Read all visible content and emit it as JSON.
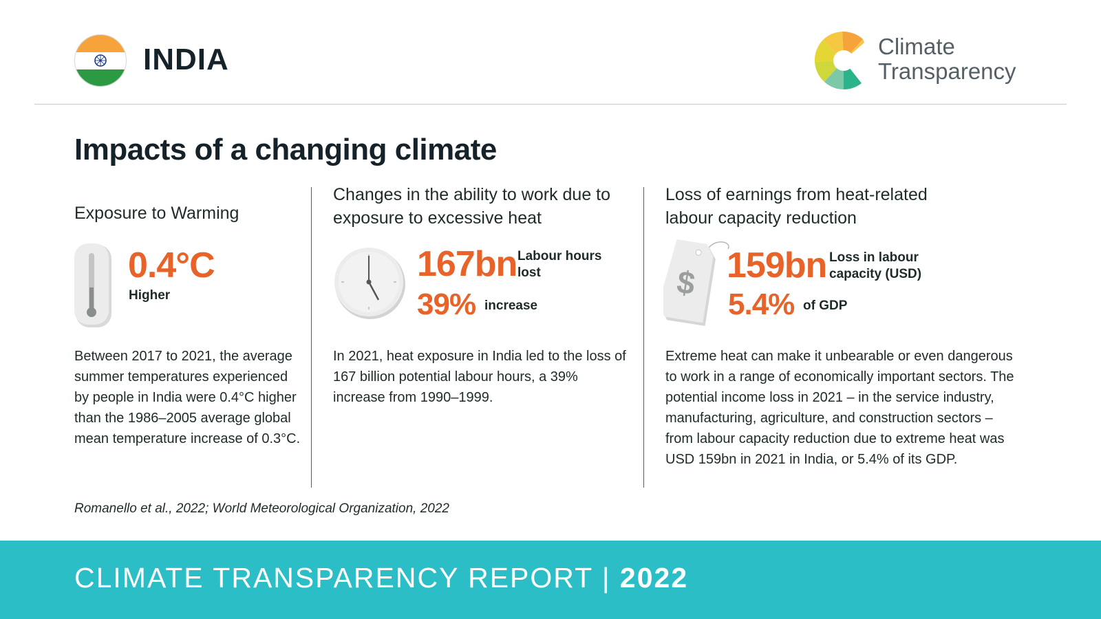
{
  "header": {
    "country": "INDIA",
    "logo_line1": "Climate",
    "logo_line2": "Transparency"
  },
  "section_title": "Impacts of a changing climate",
  "columns": [
    {
      "heading": "Exposure to Warming",
      "icon": "thermometer-icon",
      "stat_value": "0.4°C",
      "stat_label": "Higher",
      "text": "Between 2017 to 2021, the average summer temperatures experienced by people in India were 0.4°C higher than the 1986–2005 average global mean temperature increase of 0.3°C."
    },
    {
      "heading": "Changes in the ability to work due to exposure to excessive heat",
      "icon": "clock-icon",
      "stat_value": "167bn",
      "stat_label": "Labour hours lost",
      "stat2_value": "39%",
      "stat2_label": "increase",
      "text": "In 2021, heat exposure in India led to the loss of 167 billion potential labour hours, a 39% increase from 1990–1999."
    },
    {
      "heading": "Loss of earnings from heat-related labour capacity reduction",
      "icon": "price-tag-icon",
      "stat_value": "159bn",
      "stat_label": "Loss in labour capacity (USD)",
      "stat2_value": "5.4%",
      "stat2_label": "of GDP",
      "text": "Extreme heat can make it unbearable or even dangerous to work in a range of economically important sectors. The potential income loss in 2021 – in the service industry, manufacturing, agriculture, and construction sectors – from labour capacity reduction due to extreme heat was USD 159bn in 2021 in India, or 5.4% of its GDP."
    }
  ],
  "source": "Romanello et al., 2022; World Meteorological Organization, 2022",
  "footer": {
    "report": "CLIMATE TRANSPARENCY REPORT",
    "separator": "|",
    "year": "2022"
  },
  "colors": {
    "accent": "#e8632a",
    "footer_bg": "#2bbec6",
    "flag_saffron": "#f7a33c",
    "flag_green": "#2c9a43",
    "chakra": "#1d3b8a"
  }
}
